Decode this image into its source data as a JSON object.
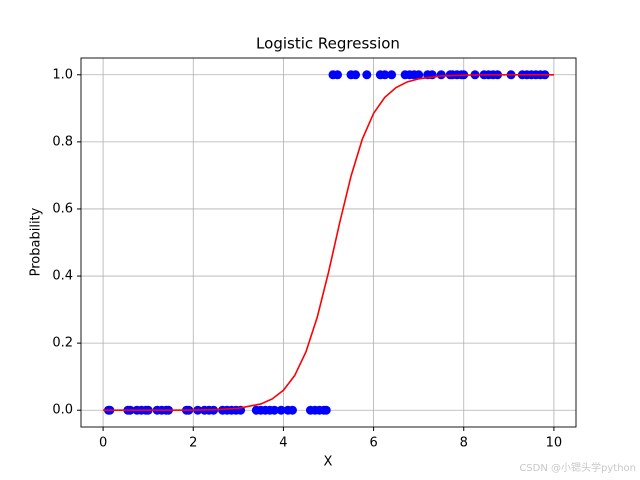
{
  "chart_data": {
    "type": "scatter",
    "title": "Logistic Regression",
    "x_label": "X",
    "y_label": "Probability",
    "xlim": [
      -0.49,
      10.49
    ],
    "ylim": [
      -0.05,
      1.05
    ],
    "grid": true,
    "xticks": [
      0,
      2,
      4,
      6,
      8,
      10
    ],
    "yticks": [
      {
        "value": 0,
        "label": "0.0"
      },
      {
        "value": 0.2,
        "label": "0.2"
      },
      {
        "value": 0.4,
        "label": "0.4"
      },
      {
        "value": 0.6,
        "label": "0.6"
      },
      {
        "value": 0.8,
        "label": "0.8"
      },
      {
        "value": 1,
        "label": "1.0"
      }
    ],
    "series": [
      {
        "type": "scatter",
        "color": "#0000ff",
        "x": [
          0.12,
          0.15,
          0.55,
          0.6,
          0.75,
          0.85,
          0.95,
          1.0,
          1.2,
          1.3,
          1.4,
          1.45,
          1.85,
          1.9,
          2.1,
          2.25,
          2.35,
          2.45,
          2.65,
          2.75,
          2.85,
          2.95,
          3.05,
          3.4,
          3.5,
          3.6,
          3.7,
          3.8,
          3.95,
          4.1,
          4.2,
          4.6,
          4.7,
          4.8,
          4.9,
          4.95,
          5.1,
          5.2,
          5.5,
          5.6,
          5.85,
          6.15,
          6.25,
          6.4,
          6.7,
          6.8,
          6.9,
          7.0,
          7.2,
          7.3,
          7.5,
          7.7,
          7.75,
          7.85,
          7.95,
          8.0,
          8.25,
          8.45,
          8.55,
          8.65,
          8.75,
          9.05,
          9.3,
          9.4,
          9.5,
          9.6,
          9.7,
          9.8
        ],
        "values": [
          0,
          0,
          0,
          0,
          0,
          0,
          0,
          0,
          0,
          0,
          0,
          0,
          0,
          0,
          0,
          0,
          0,
          0,
          0,
          0,
          0,
          0,
          0,
          0,
          0,
          0,
          0,
          0,
          0,
          0,
          0,
          0,
          0,
          0,
          0,
          0,
          1,
          1,
          1,
          1,
          1,
          1,
          1,
          1,
          1,
          1,
          1,
          1,
          1,
          1,
          1,
          1,
          1,
          1,
          1,
          1,
          1,
          1,
          1,
          1,
          1,
          1,
          1,
          1,
          1,
          1,
          1,
          1
        ]
      },
      {
        "type": "line",
        "color": "#ff0000",
        "x": [
          0,
          0.5,
          1,
          1.5,
          2,
          2.5,
          3,
          3.5,
          3.75,
          4,
          4.25,
          4.5,
          4.75,
          5,
          5.25,
          5.5,
          5.75,
          6,
          6.25,
          6.5,
          6.75,
          7,
          7.5,
          8,
          8.5,
          9,
          9.5,
          10
        ],
        "values": [
          0,
          0,
          0,
          0.0002,
          0.0005,
          0.0017,
          0.0057,
          0.0187,
          0.0336,
          0.0595,
          0.1034,
          0.174,
          0.277,
          0.411,
          0.56,
          0.698,
          0.808,
          0.885,
          0.933,
          0.962,
          0.979,
          0.988,
          0.9965,
          0.9989,
          0.9997,
          0.9999,
          1,
          1
        ]
      }
    ]
  },
  "watermark": "CSDN @小锶头学python"
}
